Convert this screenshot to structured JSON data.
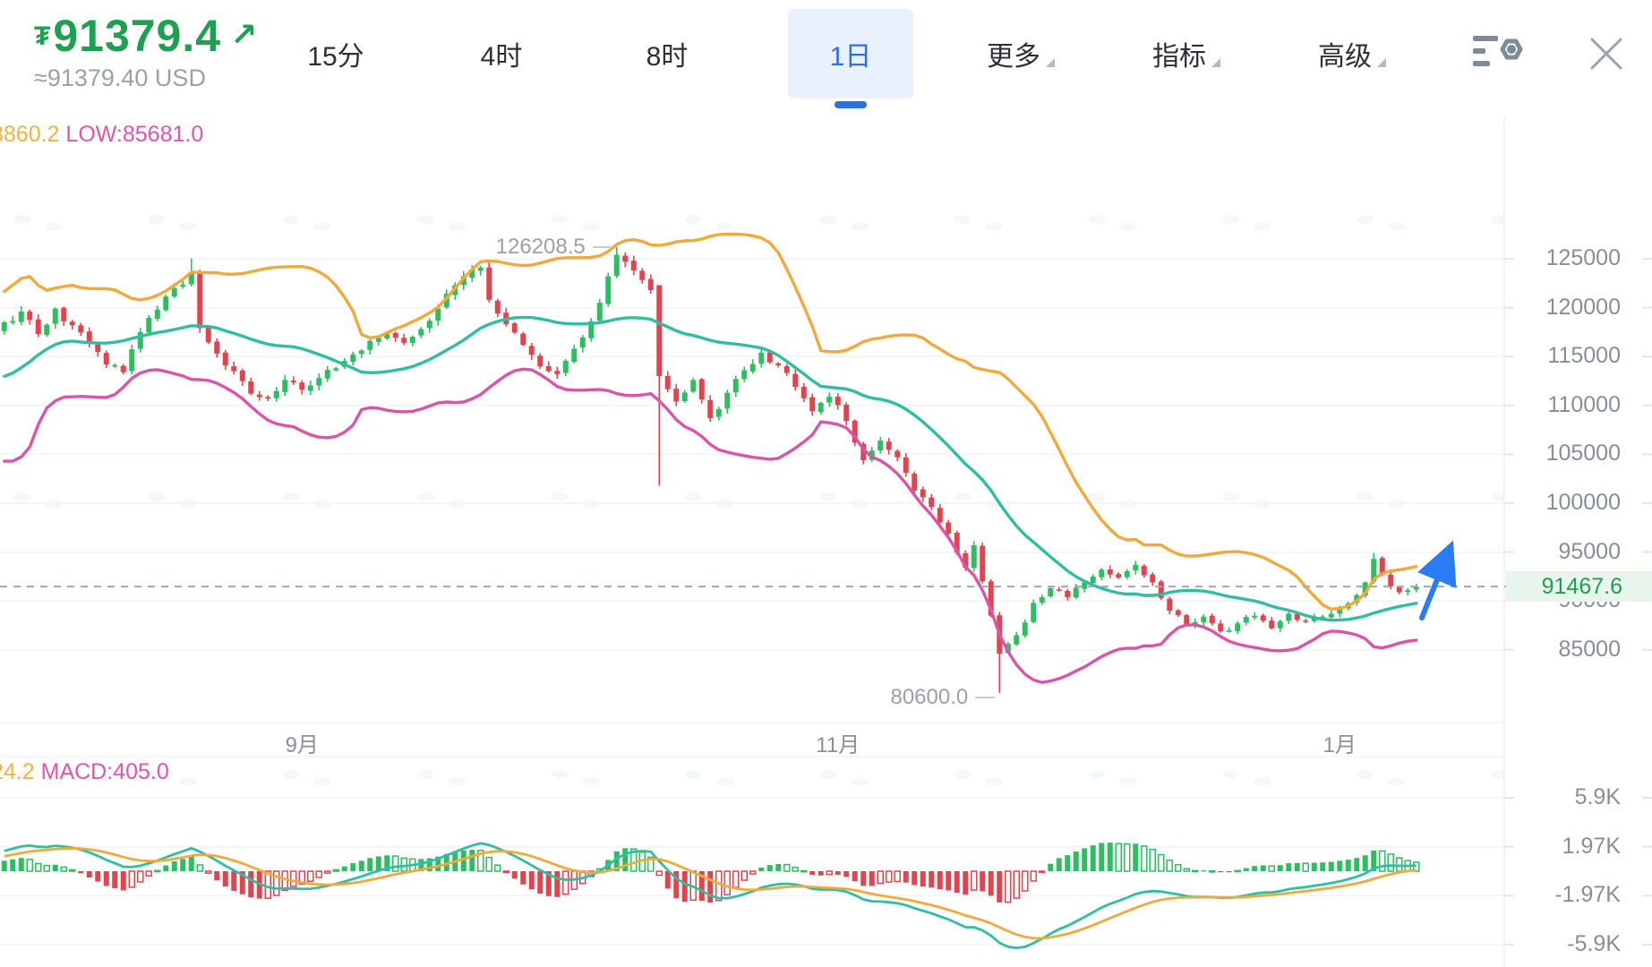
{
  "header": {
    "currency_symbol": "₮",
    "price": "91379.4",
    "up_arrow": "↗",
    "approx": "≈91379.40 USD",
    "tabs": [
      {
        "label": "15分",
        "selected": false,
        "dropdown": false
      },
      {
        "label": "4时",
        "selected": false,
        "dropdown": false
      },
      {
        "label": "8时",
        "selected": false,
        "dropdown": false
      },
      {
        "label": "1日",
        "selected": true,
        "dropdown": false
      },
      {
        "label": "更多",
        "selected": false,
        "dropdown": true
      },
      {
        "label": "指标",
        "selected": false,
        "dropdown": true
      },
      {
        "label": "高级",
        "selected": false,
        "dropdown": true
      }
    ]
  },
  "indicator_labels": {
    "boll_partial": "3860.2",
    "boll_low": "LOW:85681.0",
    "macd_partial": "24.2",
    "macd_value": "MACD:405.0"
  },
  "chart_data": {
    "type": "candlestick",
    "title": "",
    "y_ticks": [
      125000,
      120000,
      115000,
      110000,
      105000,
      100000,
      95000,
      90000,
      85000
    ],
    "x_axis_labels": [
      {
        "label": "9月",
        "day": 35
      },
      {
        "label": "11月",
        "day": 98
      },
      {
        "label": "1月",
        "day": 157
      }
    ],
    "last_price": 91467.6,
    "last_price_label": "91467.6",
    "high_annotation": {
      "label": "126208.5",
      "value": 126208.5,
      "day": 72
    },
    "low_annotation": {
      "label": "80600.0",
      "value": 80600.0,
      "day": 117
    },
    "close_anchors": [
      [
        0,
        118500
      ],
      [
        2,
        119600
      ],
      [
        4,
        117300
      ],
      [
        6,
        119900
      ],
      [
        8,
        118200
      ],
      [
        10,
        116300
      ],
      [
        12,
        114200
      ],
      [
        14,
        113400
      ],
      [
        16,
        117500
      ],
      [
        18,
        119800
      ],
      [
        20,
        122000
      ],
      [
        22,
        123600
      ],
      [
        23,
        117900
      ],
      [
        25,
        115300
      ],
      [
        27,
        113500
      ],
      [
        29,
        111200
      ],
      [
        31,
        110700
      ],
      [
        33,
        112600
      ],
      [
        35,
        111600
      ],
      [
        37,
        112800
      ],
      [
        39,
        113800
      ],
      [
        41,
        115200
      ],
      [
        43,
        116600
      ],
      [
        45,
        117300
      ],
      [
        47,
        116400
      ],
      [
        49,
        117800
      ],
      [
        51,
        119900
      ],
      [
        53,
        122300
      ],
      [
        55,
        123900
      ],
      [
        56,
        124100
      ],
      [
        57,
        120800
      ],
      [
        59,
        118300
      ],
      [
        61,
        116200
      ],
      [
        63,
        114000
      ],
      [
        65,
        113200
      ],
      [
        67,
        115800
      ],
      [
        69,
        118600
      ],
      [
        71,
        123200
      ],
      [
        72,
        125400
      ],
      [
        74,
        123800
      ],
      [
        76,
        121800
      ],
      [
        77,
        113000
      ],
      [
        79,
        110400
      ],
      [
        81,
        112600
      ],
      [
        83,
        108700
      ],
      [
        85,
        111300
      ],
      [
        87,
        113600
      ],
      [
        89,
        115400
      ],
      [
        91,
        114100
      ],
      [
        93,
        111900
      ],
      [
        95,
        109400
      ],
      [
        97,
        110900
      ],
      [
        99,
        108400
      ],
      [
        101,
        104400
      ],
      [
        103,
        106400
      ],
      [
        105,
        104700
      ],
      [
        107,
        101300
      ],
      [
        109,
        99600
      ],
      [
        111,
        96900
      ],
      [
        113,
        93400
      ],
      [
        114,
        95700
      ],
      [
        115,
        92000
      ],
      [
        116,
        88500
      ],
      [
        117,
        84600
      ],
      [
        119,
        86500
      ],
      [
        121,
        89800
      ],
      [
        123,
        91300
      ],
      [
        125,
        90400
      ],
      [
        127,
        91900
      ],
      [
        129,
        93200
      ],
      [
        131,
        92400
      ],
      [
        133,
        93700
      ],
      [
        135,
        91900
      ],
      [
        137,
        89000
      ],
      [
        139,
        87600
      ],
      [
        141,
        88400
      ],
      [
        143,
        86900
      ],
      [
        145,
        87700
      ],
      [
        147,
        88500
      ],
      [
        149,
        87200
      ],
      [
        151,
        88700
      ],
      [
        153,
        87900
      ],
      [
        155,
        88400
      ],
      [
        157,
        89300
      ],
      [
        159,
        90600
      ],
      [
        160,
        91900
      ],
      [
        161,
        94300
      ],
      [
        162,
        92700
      ],
      [
        163,
        91500
      ],
      [
        164,
        90900
      ],
      [
        165,
        91100
      ],
      [
        166,
        91467.6
      ]
    ],
    "warmup_anchors": [
      [
        -26,
        103000
      ],
      [
        -21,
        117000
      ],
      [
        -16,
        103500
      ],
      [
        -11,
        120000
      ],
      [
        -6,
        110000
      ],
      [
        -1,
        118000
      ]
    ],
    "special_candles": {
      "22": {
        "high": 125050
      },
      "72": {
        "high": 126208.5
      },
      "77": {
        "open": 122300,
        "low": 101800
      },
      "117": {
        "low": 80600
      },
      "161": {
        "high": 94900
      }
    },
    "indicators": {
      "bollinger_period": 20,
      "bollinger_mult": 2,
      "macd_params": [
        12,
        26,
        9
      ]
    },
    "macd_y_ticks": [
      {
        "label": "5.9K",
        "value": 5900
      },
      {
        "label": "1.97K",
        "value": 1970
      },
      {
        "label": "-1.97K",
        "value": -1970
      },
      {
        "label": "-5.9K",
        "value": -5900
      }
    ]
  },
  "colors": {
    "candle_up": "#2EBD61",
    "candle_down": "#E2444F",
    "boll_upper": "#F2A93B",
    "boll_mid": "#2FBEA2",
    "boll_lower": "#D855A8",
    "macd_dif": "#2FBEA2",
    "macd_dea": "#F2A93B",
    "price_green": "#1FA050",
    "tab_blue": "#2D6FE4",
    "arrow_blue": "#2B7BF3",
    "dashed_line": "#9EA6AF",
    "grid": "#F1F3F5",
    "axis_text": "#878E98",
    "last_price_bg": "#E8F5EC"
  }
}
